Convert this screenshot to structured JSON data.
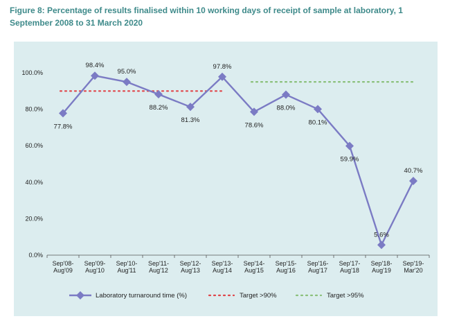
{
  "figure_title": "Figure 8: Percentage of results finalised within 10 working days of receipt of sample at laboratory, 1 September 2008 to 31 March 2020",
  "colors": {
    "title": "#3e8a8a",
    "panel": "#dcedef",
    "series": "#7b7bc4",
    "target90": "#e0464a",
    "target95": "#8ac07a",
    "axis": "#555555"
  },
  "chart_data": {
    "type": "line",
    "categories": [
      [
        "Sep'08-",
        "Aug'09"
      ],
      [
        "Sep'09-",
        "Aug'10"
      ],
      [
        "Sep'10-",
        "Aug'11"
      ],
      [
        "Sep'11-",
        "Aug'12"
      ],
      [
        "Sep'12-",
        "Aug'13"
      ],
      [
        "Sep'13-",
        "Aug'14"
      ],
      [
        "Sep'14-",
        "Aug'15"
      ],
      [
        "Sep'15-",
        "Aug'16"
      ],
      [
        "Sep'16-",
        "Aug'17"
      ],
      [
        "Sep'17-",
        "Aug'18"
      ],
      [
        "Sep'18-",
        "Aug'19"
      ],
      [
        "Sep'19-",
        "Mar'20"
      ]
    ],
    "series": [
      {
        "name": "Laboratory turnaround time (%)",
        "values": [
          77.8,
          98.4,
          95.0,
          88.2,
          81.3,
          97.8,
          78.6,
          88.0,
          80.1,
          59.9,
          5.6,
          40.7
        ],
        "labels": [
          "77.8%",
          "98.4%",
          "95.0%",
          "88.2%",
          "81.3%",
          "97.8%",
          "78.6%",
          "88.0%",
          "80.1%",
          "59.9%",
          "5.6%",
          "40.7%"
        ]
      }
    ],
    "targets": [
      {
        "name": "Target >90%",
        "value": 90,
        "from_index": 0,
        "to_index": 5
      },
      {
        "name": "Target >95%",
        "value": 95,
        "from_index": 6,
        "to_index": 11
      }
    ],
    "y_ticks": [
      "0.0%",
      "20.0%",
      "40.0%",
      "60.0%",
      "80.0%",
      "100.0%"
    ],
    "y_tick_values": [
      0,
      20,
      40,
      60,
      80,
      100
    ],
    "ylim": [
      0,
      100
    ],
    "legend": [
      "Laboratory turnaround time (%)",
      "Target >90%",
      "Target >95%"
    ]
  }
}
